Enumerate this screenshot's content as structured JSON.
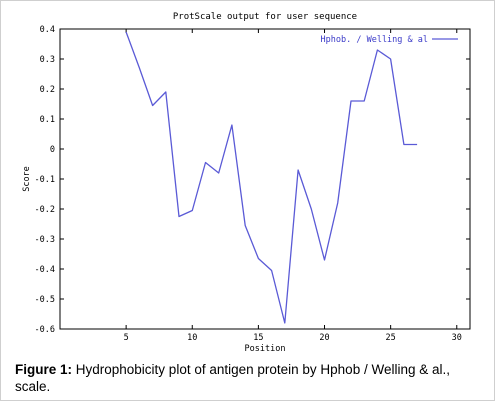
{
  "chart_data": {
    "type": "line",
    "title": "ProtScale output for user sequence",
    "xlabel": "Position",
    "ylabel": "Score",
    "xlim": [
      0,
      31
    ],
    "ylim": [
      -0.6,
      0.4
    ],
    "xticks": [
      5,
      10,
      15,
      20,
      25,
      30
    ],
    "yticks": [
      0.4,
      0.3,
      0.2,
      0.1,
      0,
      -0.1,
      -0.2,
      -0.3,
      -0.4,
      -0.5,
      -0.6
    ],
    "grid": false,
    "legend_position": "top-right",
    "series": [
      {
        "name": "Hphob. / Welling & al",
        "color": "#5a5ad6",
        "x": [
          5,
          6,
          7,
          8,
          9,
          10,
          11,
          12,
          13,
          14,
          15,
          16,
          17,
          18,
          19,
          20,
          21,
          22,
          23,
          24,
          25,
          26,
          27
        ],
        "values": [
          0.39,
          0.27,
          0.145,
          0.19,
          -0.225,
          -0.205,
          -0.045,
          -0.08,
          0.08,
          -0.255,
          -0.365,
          -0.405,
          -0.58,
          -0.07,
          -0.2,
          -0.37,
          -0.18,
          0.16,
          0.16,
          0.33,
          0.3,
          0.015,
          0.015
        ]
      }
    ]
  },
  "caption": {
    "label": "Figure 1:",
    "text": " Hydrophobicity plot of antigen protein by Hphob / Welling & al., scale."
  }
}
